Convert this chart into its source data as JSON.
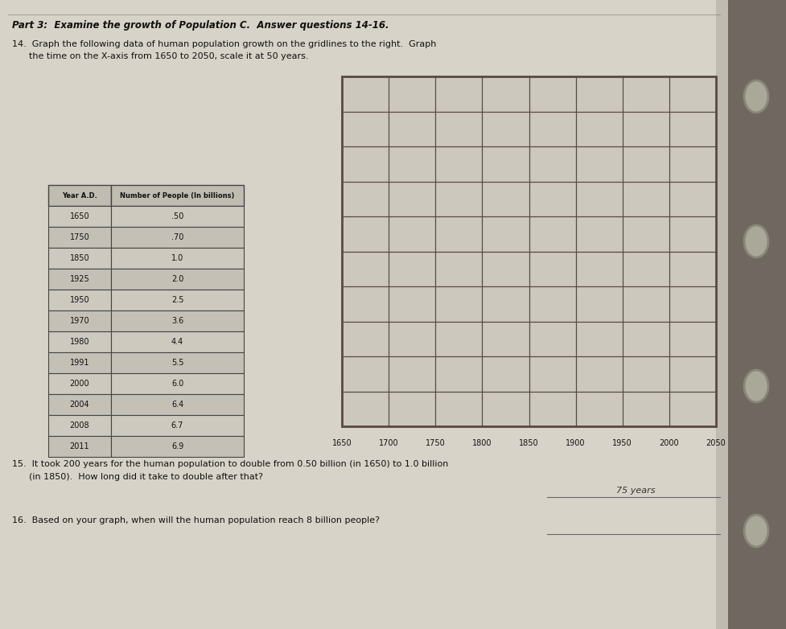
{
  "title_part3": "Part 3:  Examine the growth of Population C.  Answer questions 14-16.",
  "question14_line1": "14.  Graph the following data of human population growth on the gridlines to the right.  Graph",
  "question14_line2": "      the time on the X-axis from 1650 to 2050, scale it at 50 years.",
  "question15_line1": "15.  It took 200 years for the human population to double from 0.50 billion (in 1650) to 1.0 billion",
  "question15_line2": "      (in 1850).  How long did it take to double after that?",
  "question16": "16.  Based on your graph, when will the human population reach 8 billion people?",
  "answer15": "75 years",
  "table_headers": [
    "Year A.D.",
    "Number of People (In billions)"
  ],
  "table_years": [
    "1650",
    "1750",
    "1850",
    "1925",
    "1950",
    "1970",
    "1980",
    "1991",
    "2000",
    "2004",
    "2008",
    "2011"
  ],
  "table_values": [
    ".50",
    ".70",
    "1.0",
    "2.0",
    "2.5",
    "3.6",
    "4.4",
    "5.5",
    "6.0",
    "6.4",
    "6.7",
    "6.9"
  ],
  "grid_xtick_labels": [
    "1650",
    "1700",
    "1750",
    "1800",
    "1850",
    "1900",
    "1950",
    "2000",
    "2050"
  ],
  "grid_rows": 10,
  "grid_cols": 8,
  "bg_color": "#b0aba0",
  "paper_color": "#d8d3c8",
  "grid_bg_color": "#ccc8be",
  "grid_line_color": "#5a4a42",
  "table_border_color": "#444444",
  "header_bg_color": "#c0bcb2",
  "text_color": "#111111",
  "font_size_title": 8.5,
  "font_size_body": 8,
  "font_size_table": 7,
  "font_size_grid_label": 7,
  "binder_color": "#888070",
  "binder_dark": "#555045"
}
